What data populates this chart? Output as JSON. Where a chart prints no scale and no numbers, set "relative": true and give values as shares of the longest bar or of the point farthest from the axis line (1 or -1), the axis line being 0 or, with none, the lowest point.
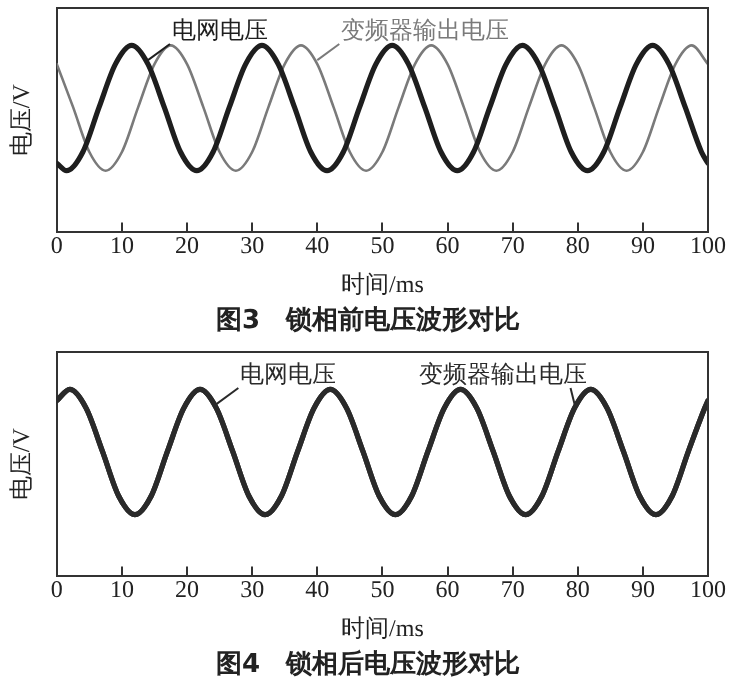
{
  "chart_data": [
    {
      "type": "line",
      "title": "图3　锁相前电压波形对比",
      "xlabel": "时间/ms",
      "ylabel": "电压/V",
      "relative": true,
      "xlim": [
        0,
        100
      ],
      "xticks": [
        0,
        10,
        20,
        30,
        40,
        50,
        60,
        70,
        80,
        90,
        100
      ],
      "series": [
        {
          "name": "电网电压",
          "color": "#1e1e1e",
          "x": [
            0,
            1.5,
            4,
            6.5,
            9,
            11.5,
            14,
            16.5,
            19,
            21.5,
            24,
            26.5,
            29,
            31.5,
            34,
            36.5,
            39,
            41.5,
            44,
            46.5,
            49,
            51.5,
            54,
            56.5,
            59,
            61.5,
            64,
            66.5,
            69,
            71.5,
            74,
            76.5,
            79,
            81.5,
            84,
            86.5,
            89,
            91.5,
            94,
            96.5,
            99,
            100
          ],
          "values": [
            0.37,
            0.33,
            0.43,
            0.67,
            0.9,
            1,
            0.9,
            0.67,
            0.43,
            0.33,
            0.43,
            0.67,
            0.9,
            1,
            0.9,
            0.67,
            0.43,
            0.33,
            0.43,
            0.67,
            0.9,
            1,
            0.9,
            0.67,
            0.43,
            0.33,
            0.43,
            0.67,
            0.9,
            1,
            0.9,
            0.67,
            0.43,
            0.33,
            0.43,
            0.67,
            0.9,
            1,
            0.9,
            0.67,
            0.43,
            0.37
          ]
        },
        {
          "name": "变频器输出电压",
          "color": "#7a7a7a",
          "x": [
            0,
            2.5,
            5,
            7.5,
            10,
            12.5,
            15,
            17.5,
            20,
            22.5,
            25,
            27.5,
            30,
            32.5,
            35,
            37.5,
            40,
            42.5,
            45,
            47.5,
            50,
            52.5,
            55,
            57.5,
            60,
            62.5,
            65,
            67.5,
            70,
            72.5,
            75,
            77.5,
            80,
            82.5,
            85,
            87.5,
            90,
            92.5,
            95,
            97.5,
            100
          ],
          "values": [
            0.9,
            0.67,
            0.43,
            0.33,
            0.43,
            0.67,
            0.9,
            1,
            0.9,
            0.67,
            0.43,
            0.33,
            0.43,
            0.67,
            0.9,
            1,
            0.9,
            0.67,
            0.43,
            0.33,
            0.43,
            0.67,
            0.9,
            1,
            0.9,
            0.67,
            0.43,
            0.33,
            0.43,
            0.67,
            0.9,
            1,
            0.9,
            0.67,
            0.43,
            0.33,
            0.43,
            0.67,
            0.9,
            1,
            0.9
          ]
        }
      ]
    },
    {
      "type": "line",
      "title": "图4　锁相后电压波形对比",
      "xlabel": "时间/ms",
      "ylabel": "电压/V",
      "relative": true,
      "xlim": [
        0,
        100
      ],
      "xticks": [
        0,
        10,
        20,
        30,
        40,
        50,
        60,
        70,
        80,
        90,
        100
      ],
      "series": [
        {
          "name": "电网电压",
          "color": "#2a2a2a",
          "x": [
            0,
            2,
            4.5,
            7,
            9.5,
            12,
            14.5,
            17,
            19.5,
            22,
            24.5,
            27,
            29.5,
            32,
            34.5,
            37,
            39.5,
            42,
            44.5,
            47,
            49.5,
            52,
            54.5,
            57,
            59.5,
            62,
            64.5,
            67,
            69.5,
            72,
            74.5,
            77,
            79.5,
            82,
            84.5,
            87,
            89.5,
            92,
            94.5,
            97,
            99.5,
            100
          ],
          "values": [
            0.94,
            1,
            0.9,
            0.67,
            0.43,
            0.33,
            0.43,
            0.67,
            0.9,
            1,
            0.9,
            0.67,
            0.43,
            0.33,
            0.43,
            0.67,
            0.9,
            1,
            0.9,
            0.67,
            0.43,
            0.33,
            0.43,
            0.67,
            0.9,
            1,
            0.9,
            0.67,
            0.43,
            0.33,
            0.43,
            0.67,
            0.9,
            1,
            0.9,
            0.67,
            0.43,
            0.33,
            0.43,
            0.67,
            0.9,
            0.94
          ]
        },
        {
          "name": "变频器输出电压",
          "color": "#2a2a2a",
          "x": [
            0,
            2,
            4.5,
            7,
            9.5,
            12,
            14.5,
            17,
            19.5,
            22,
            24.5,
            27,
            29.5,
            32,
            34.5,
            37,
            39.5,
            42,
            44.5,
            47,
            49.5,
            52,
            54.5,
            57,
            59.5,
            62,
            64.5,
            67,
            69.5,
            72,
            74.5,
            77,
            79.5,
            82,
            84.5,
            87,
            89.5,
            92,
            94.5,
            97,
            99.5,
            100
          ],
          "values": [
            0.94,
            1,
            0.9,
            0.67,
            0.43,
            0.33,
            0.43,
            0.67,
            0.9,
            1,
            0.9,
            0.67,
            0.43,
            0.33,
            0.43,
            0.67,
            0.9,
            1,
            0.9,
            0.67,
            0.43,
            0.33,
            0.43,
            0.67,
            0.9,
            1,
            0.9,
            0.67,
            0.43,
            0.33,
            0.43,
            0.67,
            0.9,
            1,
            0.9,
            0.67,
            0.43,
            0.33,
            0.43,
            0.67,
            0.9,
            0.94
          ]
        }
      ]
    }
  ]
}
